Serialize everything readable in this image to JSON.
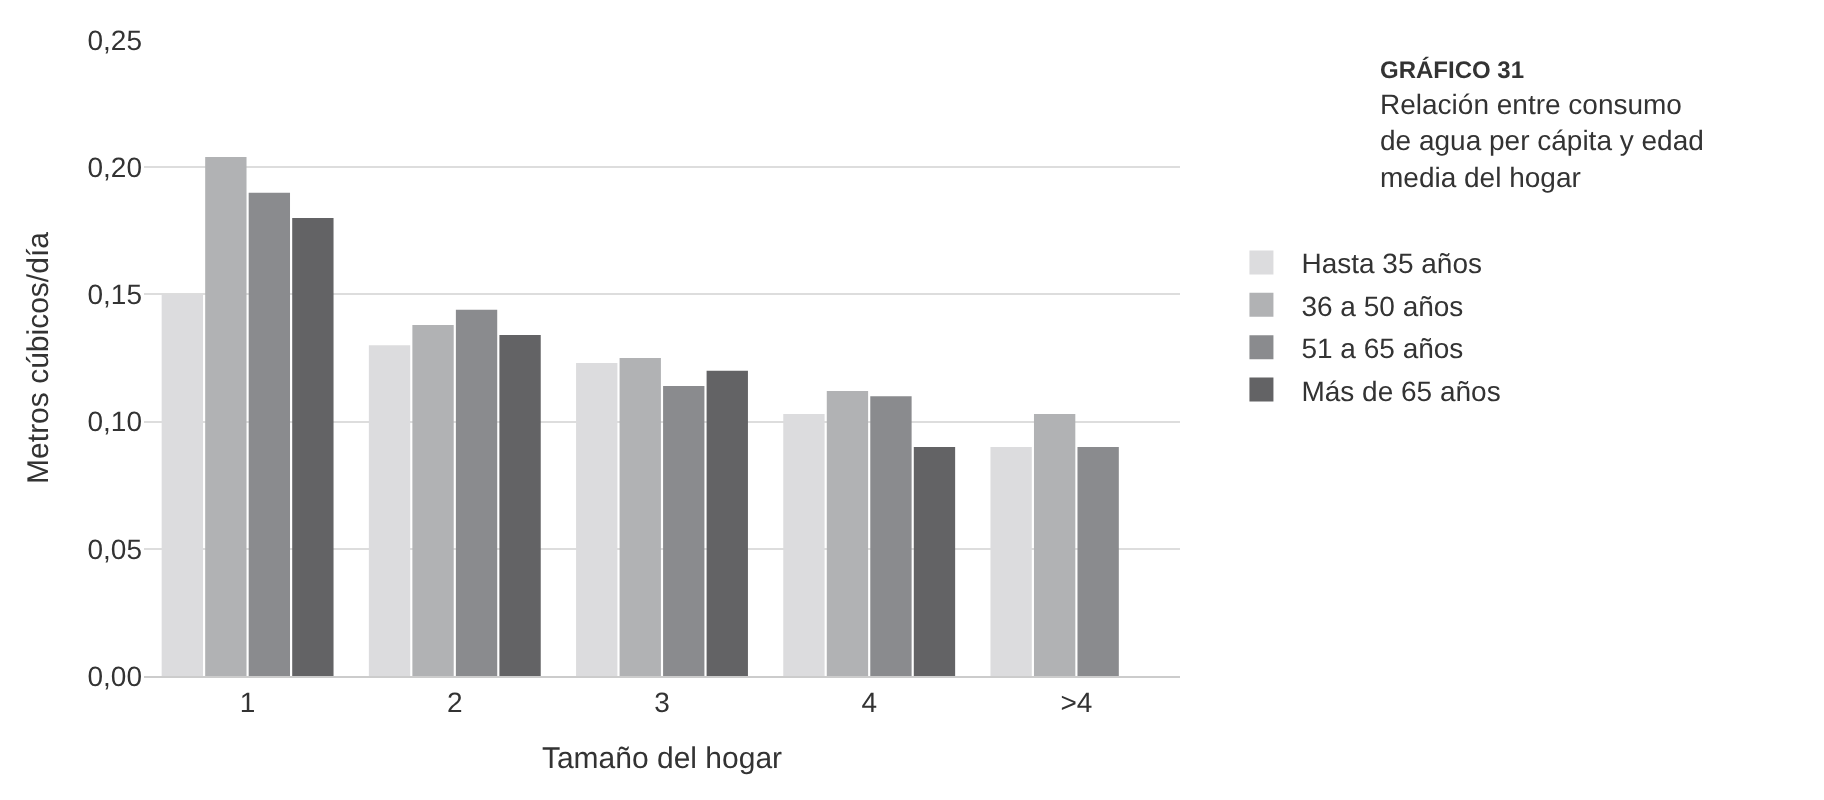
{
  "chart_data": {
    "type": "bar",
    "title": "GRÁFICO 31",
    "subtitle": "Relación entre consumo\nde agua per cápita y edad\nmedia del hogar",
    "xlabel": "Tamaño del hogar",
    "ylabel": "Metros cúbicos/día",
    "categories": [
      "1",
      "2",
      "3",
      "4",
      ">4"
    ],
    "series": [
      {
        "name": "Hasta 35 años",
        "color": "#dcdcde",
        "values": [
          0.15,
          0.13,
          0.123,
          0.103,
          0.09
        ]
      },
      {
        "name": "36 a 50 años",
        "color": "#b1b2b4",
        "values": [
          0.204,
          0.138,
          0.125,
          0.112,
          0.103
        ]
      },
      {
        "name": "51 a 65 años",
        "color": "#8a8b8e",
        "values": [
          0.19,
          0.144,
          0.114,
          0.11,
          0.09
        ]
      },
      {
        "name": "Más de 65 años",
        "color": "#636365",
        "values": [
          0.18,
          0.134,
          0.12,
          0.09,
          null
        ]
      }
    ],
    "ylim": [
      0,
      0.25
    ],
    "yticks": [
      {
        "value": 0,
        "label": "0,00"
      },
      {
        "value": 0.05,
        "label": "0,05"
      },
      {
        "value": 0.1,
        "label": "0,10"
      },
      {
        "value": 0.15,
        "label": "0,15"
      },
      {
        "value": 0.2,
        "label": "0,20"
      },
      {
        "value": 0.25,
        "label": "0,25"
      }
    ],
    "grid": "y",
    "legend": "right"
  }
}
